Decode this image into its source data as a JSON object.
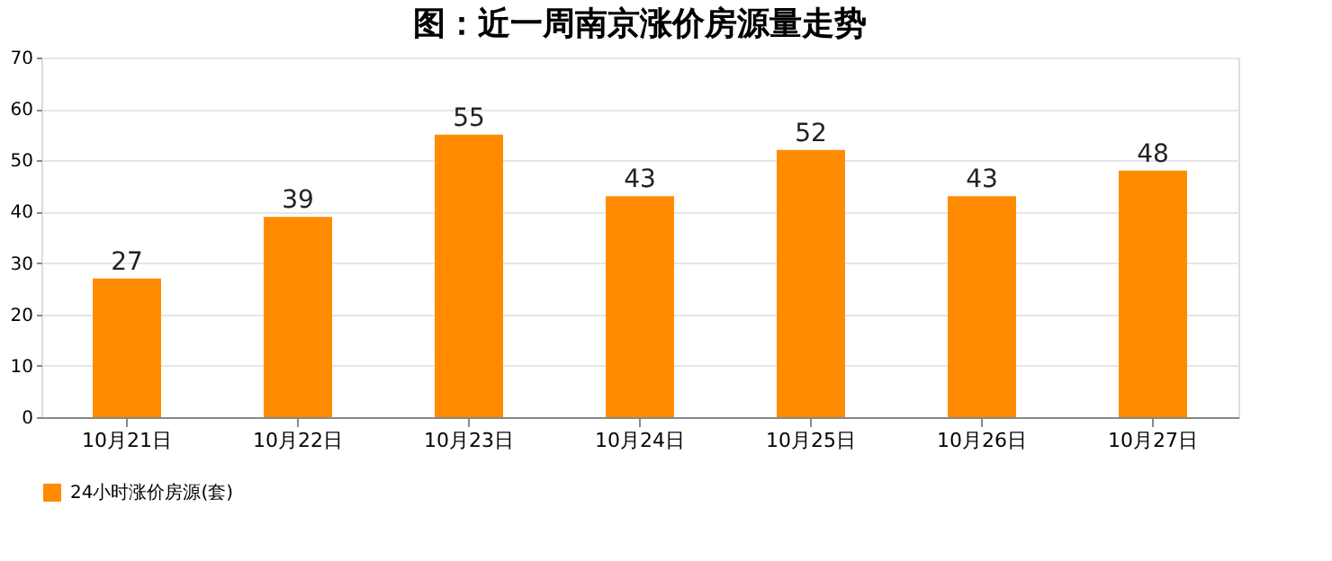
{
  "chart_data": {
    "type": "bar",
    "title": "图：近一周南京涨价房源量走势",
    "categories": [
      "10月21日",
      "10月22日",
      "10月23日",
      "10月24日",
      "10月25日",
      "10月26日",
      "10月27日"
    ],
    "series": [
      {
        "name": "24小时涨价房源(套)",
        "color": "#ff8c00",
        "values": [
          27,
          39,
          55,
          43,
          52,
          43,
          48
        ]
      }
    ],
    "ylim": [
      0,
      70
    ],
    "yticks": [
      0,
      10,
      20,
      30,
      40,
      50,
      60,
      70
    ],
    "grid": "y",
    "legend": "bottom",
    "data_labels": true
  }
}
